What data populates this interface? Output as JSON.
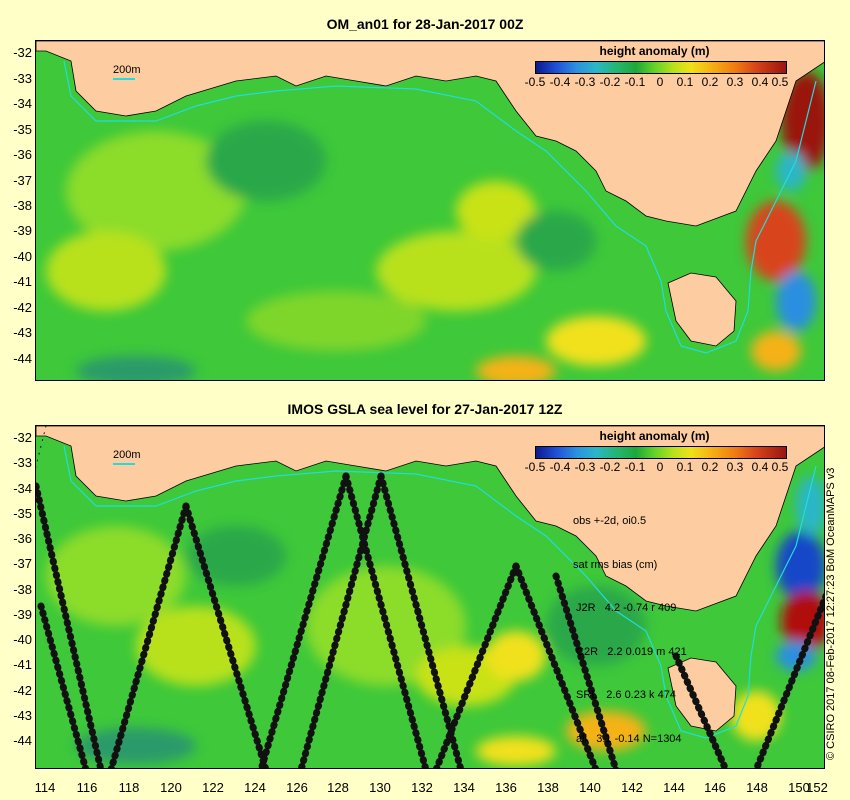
{
  "top_panel": {
    "title": "OM_an01 for 28-Jan-2017 00Z",
    "legend_title": "height anomaly (m)",
    "scale_label": "200m"
  },
  "bottom_panel": {
    "title": "IMOS GSLA sea level  for 27-Jan-2017 12Z",
    "legend_title": "height anomaly (m)",
    "scale_label": "200m",
    "stats_lines": [
      "obs +-2d, oi0.5",
      "sat rms bias (cm)",
      " J2R   4.2 -0.74 r 409",
      " C2R   2.2 0.019 m 421",
      " SRL   2.6 0.23 k 474",
      " all   3.1 -0.14 N=1304"
    ]
  },
  "legend_ticks": [
    "-0.5",
    "-0.4",
    "-0.3",
    "-0.2",
    "-0.1",
    "0",
    "0.1",
    "0.2",
    "0.3",
    "0.4",
    "0.5"
  ],
  "lat_ticks": [
    "-32",
    "-33",
    "-34",
    "-35",
    "-36",
    "-37",
    "-38",
    "-39",
    "-40",
    "-41",
    "-42",
    "-43",
    "-44"
  ],
  "lon_ticks": [
    "114",
    "116",
    "118",
    "120",
    "122",
    "124",
    "126",
    "128",
    "130",
    "132",
    "134",
    "136",
    "138",
    "140",
    "142",
    "144",
    "146",
    "148",
    "150",
    "152"
  ],
  "credit": "© CSIRO 2017  08-Feb-2017 12:27:23 BoM OceanMAPS v3",
  "colors": {
    "land": "#fdcca0",
    "ocean_base": "#3ec83a",
    "positive_strong": "#b01010",
    "negative_strong": "#1546c8",
    "isobath": "#22dddd",
    "background": "#ffffc8"
  }
}
